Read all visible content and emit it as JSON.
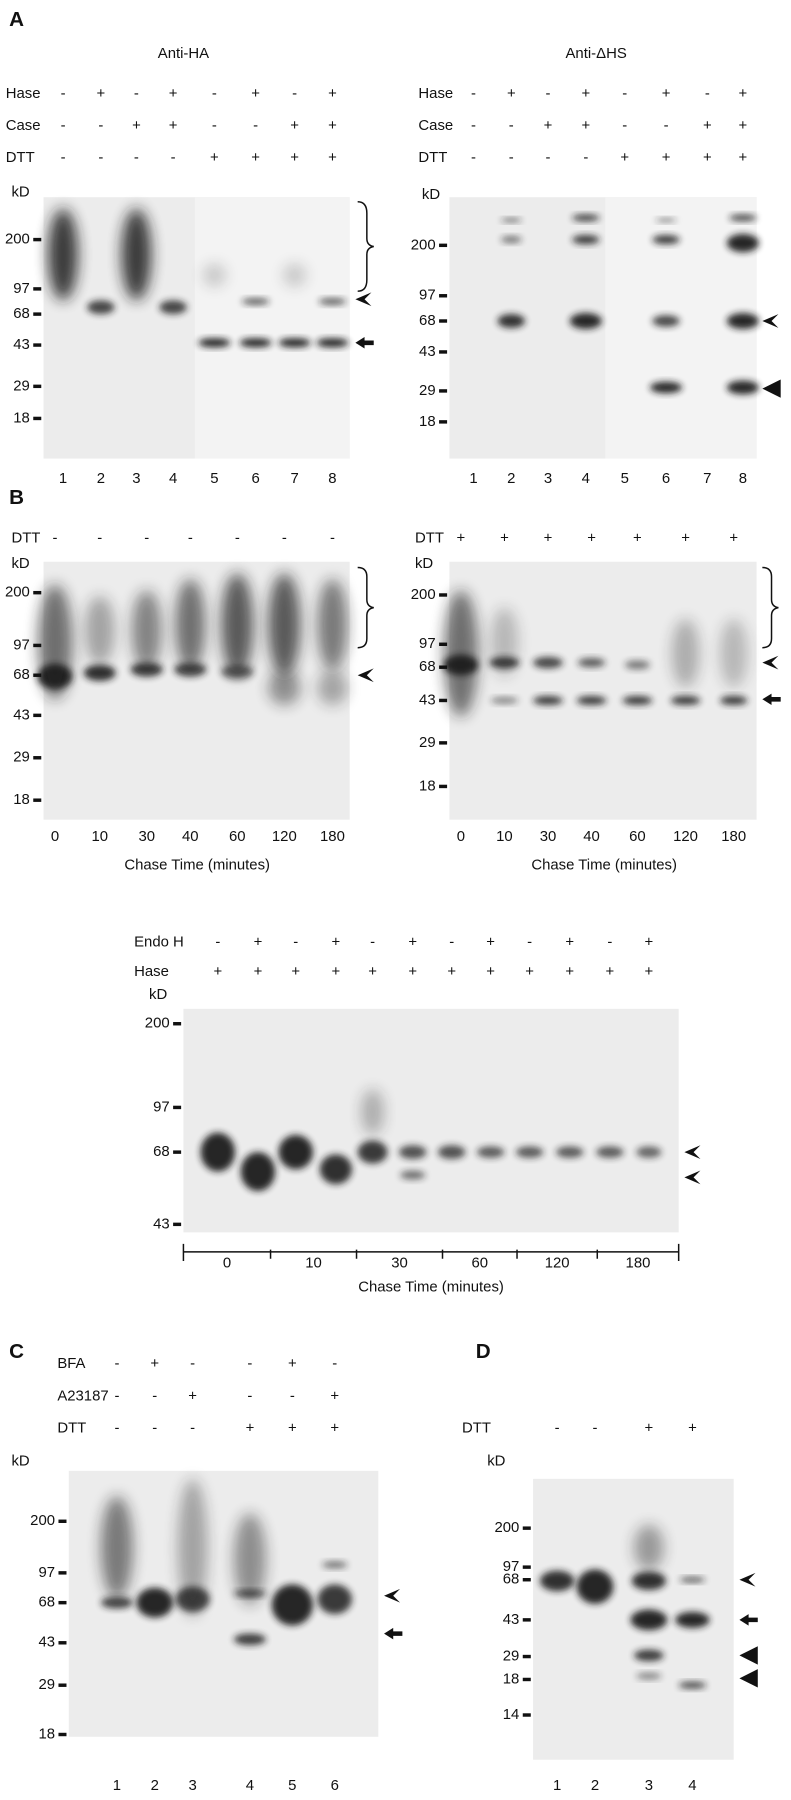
{
  "panel_a": {
    "label": "A",
    "left": {
      "title": "Anti-HA",
      "rows": [
        {
          "name": "Hase",
          "signs": [
            "-",
            "+",
            "-",
            "+",
            "-",
            "+",
            "-",
            "+"
          ]
        },
        {
          "name": "Case",
          "signs": [
            "-",
            "-",
            "+",
            "+",
            "-",
            "-",
            "+",
            "+"
          ]
        },
        {
          "name": "DTT",
          "signs": [
            "-",
            "-",
            "-",
            "-",
            "+",
            "+",
            "+",
            "+"
          ]
        }
      ],
      "kd_label": "kD",
      "markers": [
        "200",
        "97",
        "68",
        "43",
        "29",
        "18"
      ],
      "lanes": [
        "1",
        "2",
        "3",
        "4",
        "5",
        "6",
        "7",
        "8"
      ]
    },
    "right": {
      "title": "Anti-ΔHS",
      "rows": [
        {
          "name": "Hase",
          "signs": [
            "-",
            "+",
            "-",
            "+",
            "-",
            "+",
            "-",
            "+"
          ]
        },
        {
          "name": "Case",
          "signs": [
            "-",
            "-",
            "+",
            "+",
            "-",
            "-",
            "+",
            "+"
          ]
        },
        {
          "name": "DTT",
          "signs": [
            "-",
            "-",
            "-",
            "-",
            "+",
            "+",
            "+",
            "+"
          ]
        }
      ],
      "kd_label": "kD",
      "markers": [
        "200",
        "97",
        "68",
        "43",
        "29",
        "18"
      ],
      "lanes": [
        "1",
        "2",
        "3",
        "4",
        "5",
        "6",
        "7",
        "8"
      ]
    }
  },
  "panel_b": {
    "label": "B",
    "left": {
      "rows": [
        {
          "name": "DTT",
          "signs": [
            "-",
            "-",
            "-",
            "-",
            "-",
            "-",
            "-"
          ]
        }
      ],
      "kd_label": "kD",
      "markers": [
        "200",
        "97",
        "68",
        "43",
        "29",
        "18"
      ],
      "lanes": [
        "0",
        "10",
        "30",
        "40",
        "60",
        "120",
        "180"
      ],
      "xlabel": "Chase Time (minutes)"
    },
    "right": {
      "rows": [
        {
          "name": "DTT",
          "signs": [
            "+",
            "+",
            "+",
            "+",
            "+",
            "+",
            "+"
          ]
        }
      ],
      "kd_label": "kD",
      "markers": [
        "200",
        "97",
        "68",
        "43",
        "29",
        "18"
      ],
      "lanes": [
        "0",
        "10",
        "30",
        "40",
        "60",
        "120",
        "180"
      ],
      "xlabel": "Chase Time (minutes)"
    },
    "bottom": {
      "rows": [
        {
          "name": "Endo H",
          "signs": [
            "-",
            "+",
            "-",
            "+",
            "-",
            "+",
            "-",
            "+",
            "-",
            "+",
            "-",
            "+"
          ]
        },
        {
          "name": "Hase",
          "signs": [
            "+",
            "+",
            "+",
            "+",
            "+",
            "+",
            "+",
            "+",
            "+",
            "+",
            "+",
            "+"
          ]
        }
      ],
      "kd_label": "kD",
      "markers": [
        "200",
        "97",
        "68",
        "43"
      ],
      "groups": [
        "0",
        "10",
        "30",
        "60",
        "120",
        "180"
      ],
      "xlabel": "Chase Time (minutes)"
    }
  },
  "panel_c": {
    "label": "C",
    "rows": [
      {
        "name": "BFA",
        "signs": [
          "-",
          "+",
          "-",
          "-",
          "+",
          "-"
        ]
      },
      {
        "name": "A23187",
        "signs": [
          "-",
          "-",
          "+",
          "-",
          "-",
          "+"
        ]
      },
      {
        "name": "DTT",
        "signs": [
          "-",
          "-",
          "-",
          "+",
          "+",
          "+"
        ]
      }
    ],
    "kd_label": "kD",
    "markers": [
      "200",
      "97",
      "68",
      "43",
      "29",
      "18"
    ],
    "lanes": [
      "1",
      "2",
      "3",
      "4",
      "5",
      "6"
    ]
  },
  "panel_d": {
    "label": "D",
    "rows": [
      {
        "name": "DTT",
        "signs": [
          "-",
          "-",
          "+",
          "+"
        ]
      }
    ],
    "kd_label": "kD",
    "markers": [
      "200",
      "97",
      "68",
      "43",
      "29",
      "18",
      "14"
    ],
    "lanes": [
      "1",
      "2",
      "3",
      "4"
    ]
  }
}
